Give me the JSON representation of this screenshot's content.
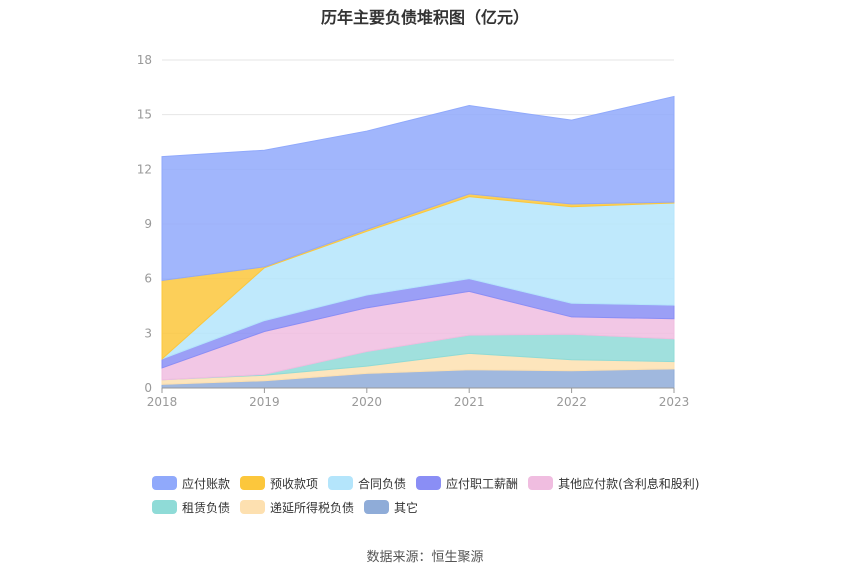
{
  "chart_data": {
    "type": "area",
    "title": "历年主要负债堆积图（亿元）",
    "stacked": true,
    "categories": [
      "2018",
      "2019",
      "2020",
      "2021",
      "2022",
      "2023"
    ],
    "ylim": [
      0,
      18
    ],
    "yticks": [
      0,
      3,
      6,
      9,
      12,
      15,
      18
    ],
    "grid": true,
    "legend_position": "bottom",
    "series": [
      {
        "name": "其它",
        "color": "#8facd8",
        "values": [
          0.2,
          0.4,
          0.8,
          1.0,
          0.95,
          1.05
        ]
      },
      {
        "name": "递延所得税负债",
        "color": "#fde0b0",
        "values": [
          0.25,
          0.3,
          0.4,
          0.9,
          0.6,
          0.4
        ]
      },
      {
        "name": "租赁负债",
        "color": "#8fdbd7",
        "values": [
          0.0,
          0.05,
          0.8,
          1.0,
          1.4,
          1.25
        ]
      },
      {
        "name": "其他应付款(含利息和股利)",
        "color": "#f0bde0",
        "values": [
          0.65,
          2.35,
          2.4,
          2.4,
          0.95,
          1.1
        ]
      },
      {
        "name": "应付职工薪酬",
        "color": "#8a8ef5",
        "values": [
          0.5,
          0.6,
          0.7,
          0.7,
          0.75,
          0.75
        ]
      },
      {
        "name": "合同负债",
        "color": "#b4e5fb",
        "values": [
          0.0,
          2.9,
          3.5,
          4.5,
          5.3,
          5.6
        ]
      },
      {
        "name": "预收款项",
        "color": "#fcc73c",
        "values": [
          4.3,
          0.05,
          0.1,
          0.15,
          0.15,
          0.05
        ]
      },
      {
        "name": "应付账款",
        "color": "#90a9fb",
        "values": [
          6.8,
          6.4,
          5.4,
          4.85,
          4.6,
          5.8
        ]
      }
    ]
  },
  "legend_rows": [
    [
      "应付账款",
      "预收款项",
      "合同负债",
      "应付职工薪酬",
      "其他应付款(含利息和股利)"
    ],
    [
      "租赁负债",
      "递延所得税负债",
      "其它"
    ]
  ],
  "source_text": "数据来源：恒生聚源"
}
